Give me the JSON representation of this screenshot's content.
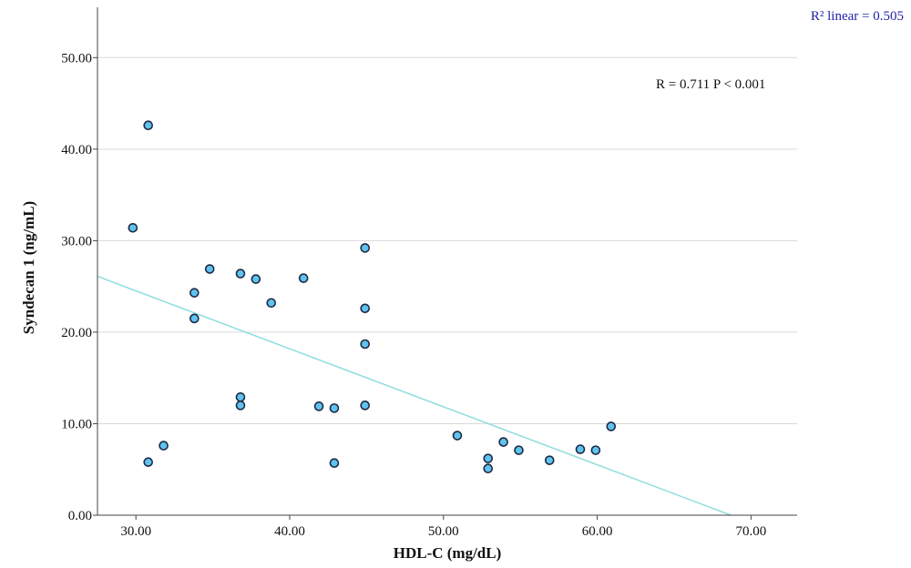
{
  "chart_data": {
    "type": "scatter",
    "xlabel": "HDL-C (mg/dL)",
    "ylabel": "Syndecan 1 (ng/mL)",
    "xlim": [
      27.5,
      73.0
    ],
    "ylim": [
      0,
      55.5
    ],
    "xticks": [
      30,
      40,
      50,
      60,
      70
    ],
    "xtick_labels": [
      "30.00",
      "40.00",
      "50.00",
      "60.00",
      "70.00"
    ],
    "yticks": [
      0,
      10,
      20,
      30,
      40,
      50
    ],
    "ytick_labels": [
      "0.00",
      "10.00",
      "20.00",
      "30.00",
      "40.00",
      "50.00"
    ],
    "grid": "horizontal",
    "annotation": "R = 0.711 P < 0.001",
    "r2_label": "R² linear = 0.505",
    "fit_line": {
      "x": [
        27.5,
        68.7
      ],
      "y": [
        26.1,
        0
      ]
    },
    "points": [
      {
        "x": 29.8,
        "y": 31.4
      },
      {
        "x": 30.8,
        "y": 42.6
      },
      {
        "x": 30.8,
        "y": 5.8
      },
      {
        "x": 31.8,
        "y": 7.6
      },
      {
        "x": 33.8,
        "y": 24.3
      },
      {
        "x": 33.8,
        "y": 21.5
      },
      {
        "x": 34.8,
        "y": 26.9
      },
      {
        "x": 36.8,
        "y": 26.4
      },
      {
        "x": 36.8,
        "y": 12.9
      },
      {
        "x": 36.8,
        "y": 12.0
      },
      {
        "x": 37.8,
        "y": 25.8
      },
      {
        "x": 38.8,
        "y": 23.2
      },
      {
        "x": 40.9,
        "y": 25.9
      },
      {
        "x": 41.9,
        "y": 11.9
      },
      {
        "x": 42.9,
        "y": 11.7
      },
      {
        "x": 42.9,
        "y": 5.7
      },
      {
        "x": 44.9,
        "y": 29.2
      },
      {
        "x": 44.9,
        "y": 22.6
      },
      {
        "x": 44.9,
        "y": 18.7
      },
      {
        "x": 44.9,
        "y": 12.0
      },
      {
        "x": 50.9,
        "y": 8.7
      },
      {
        "x": 52.9,
        "y": 6.2
      },
      {
        "x": 52.9,
        "y": 5.1
      },
      {
        "x": 53.9,
        "y": 8.0
      },
      {
        "x": 54.9,
        "y": 7.1
      },
      {
        "x": 56.9,
        "y": 6.0
      },
      {
        "x": 58.9,
        "y": 7.2
      },
      {
        "x": 59.9,
        "y": 7.1
      },
      {
        "x": 60.9,
        "y": 9.7
      }
    ]
  }
}
